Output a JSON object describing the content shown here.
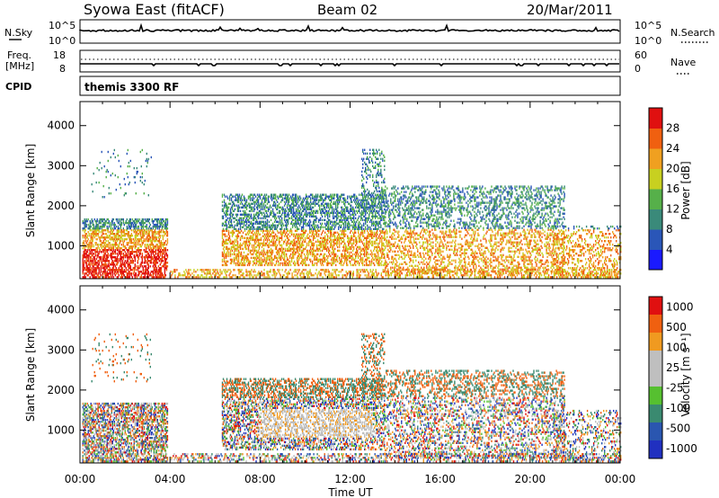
{
  "header": {
    "station": "Syowa East (fitACF)",
    "beam": "Beam 02",
    "date": "20/Mar/2011"
  },
  "sky_panel": {
    "left_label": "N.Sky",
    "right_label": "N.Search",
    "left_ticks": [
      "10^5",
      "10^0"
    ],
    "right_ticks": [
      "10^5",
      "10^0"
    ]
  },
  "freq_panel": {
    "left_label_line1": "Freq.",
    "left_label_line2": "[MHz]",
    "right_label": "Nave",
    "left_ticks": [
      "18",
      "8"
    ],
    "right_ticks": [
      "60",
      "0"
    ]
  },
  "cpid_panel": {
    "label": "CPID",
    "program": "themis 3300 RF"
  },
  "colors": {
    "power_scale": [
      "#1a1aff",
      "#2a56b8",
      "#3a8a7a",
      "#56b04a",
      "#c8d020",
      "#f0a020",
      "#f06010",
      "#e01010"
    ],
    "velocity_scale": [
      "#e01010",
      "#f06010",
      "#f09a20",
      "#bfbfbf",
      "#bfbfbf",
      "#56c030",
      "#3a8a70",
      "#2a56b0",
      "#2030c0"
    ]
  },
  "chart_data": [
    {
      "type": "heatmap",
      "name": "power",
      "xlabel": "Time UT",
      "ylabel": "Slant Range [km]",
      "x_ticks": [
        "00:00",
        "04:00",
        "08:00",
        "12:00",
        "16:00",
        "20:00",
        "00:00"
      ],
      "xlim_hours": [
        0,
        24
      ],
      "ylim": [
        180,
        4600
      ],
      "y_ticks": [
        1000,
        2000,
        3000,
        4000
      ],
      "colorbar_label": "Power [dB]",
      "colorbar_ticks": [
        "4",
        "8",
        "12",
        "16",
        "20",
        "24",
        "28"
      ],
      "colorbar_range": [
        0,
        30
      ]
    },
    {
      "type": "heatmap",
      "name": "velocity",
      "xlabel": "Time UT",
      "ylabel": "Slant Range [km]",
      "x_ticks": [
        "00:00",
        "04:00",
        "08:00",
        "12:00",
        "16:00",
        "20:00",
        "00:00"
      ],
      "xlim_hours": [
        0,
        24
      ],
      "ylim": [
        180,
        4600
      ],
      "y_ticks": [
        1000,
        2000,
        3000,
        4000
      ],
      "colorbar_label": "Velocity [m s⁻¹]",
      "colorbar_ticks": [
        "1000",
        "500",
        "100",
        "25",
        "-25",
        "-100",
        "-500",
        "-1000"
      ]
    }
  ]
}
